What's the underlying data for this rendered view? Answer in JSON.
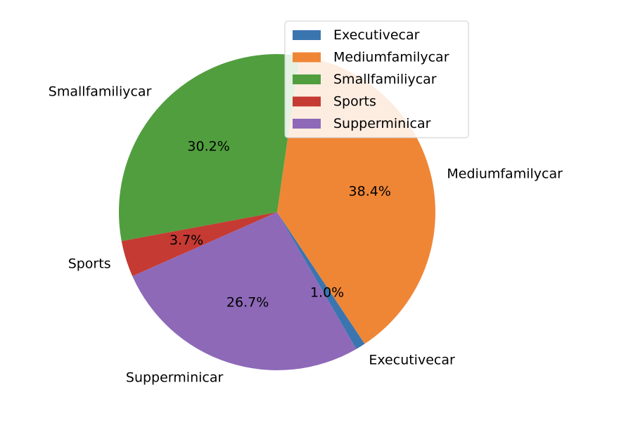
{
  "chart_data": {
    "type": "pie",
    "title": "",
    "categories": [
      "Executivecar",
      "Mediumfamilycar",
      "Smallfamiliycar",
      "Sports",
      "Supperminicar"
    ],
    "values": [
      1.0,
      38.4,
      30.2,
      3.7,
      26.7
    ],
    "value_labels": [
      "1.0%",
      "38.4%",
      "30.2%",
      "3.7%",
      "26.7%"
    ],
    "colors": [
      "#3a75b0",
      "#ef8636",
      "#519e3e",
      "#c53a32",
      "#8d69b8"
    ],
    "start_angle_deg": -60,
    "direction": "counterclockwise",
    "legend": {
      "position": "top-right",
      "entries": [
        "Executivecar",
        "Mediumfamilycar",
        "Smallfamiliycar",
        "Sports",
        "Supperminicar"
      ]
    }
  }
}
